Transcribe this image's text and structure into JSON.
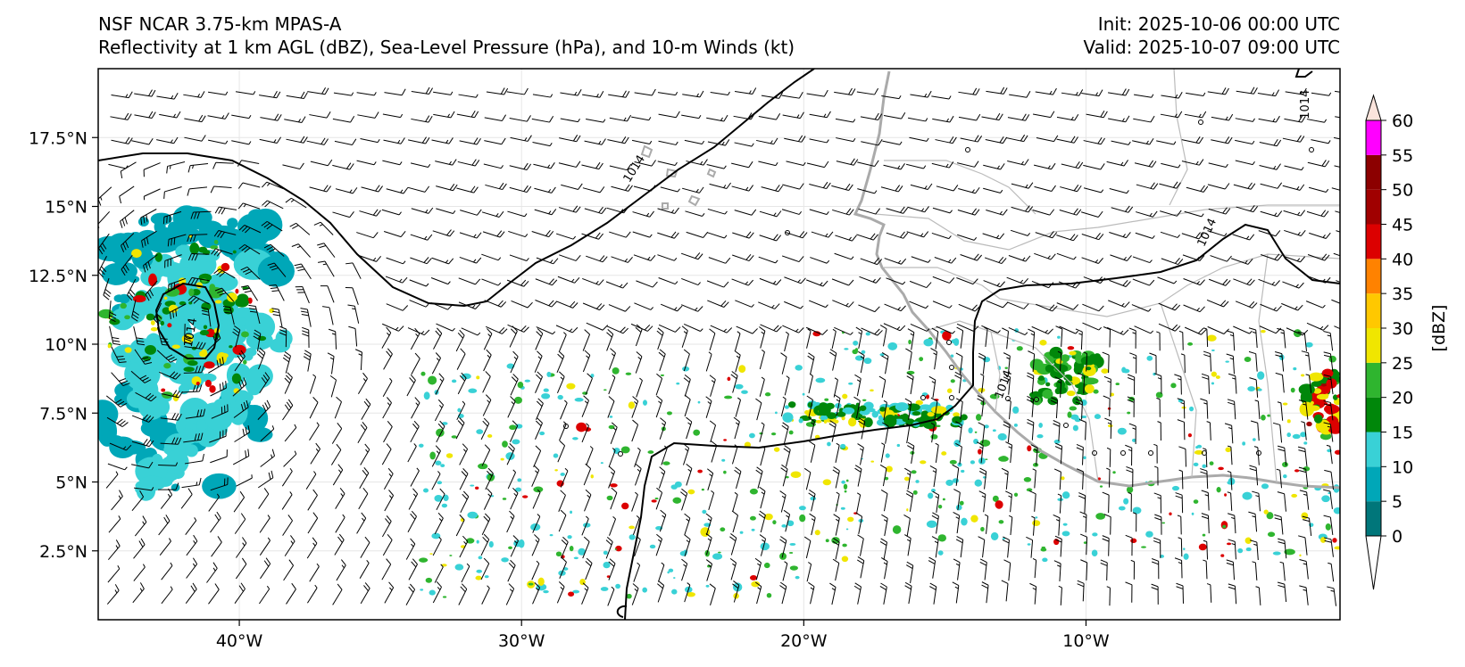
{
  "header": {
    "line1": "NSF NCAR 3.75-km MPAS-A",
    "line2": "Reflectivity at 1 km AGL (dBZ), Sea-Level Pressure (hPa), and 10-m Winds (kt)",
    "init": "Init: 2025-10-06 00:00 UTC",
    "valid": "Valid: 2025-10-07 09:00 UTC"
  },
  "map": {
    "lon_range": [
      -45,
      -1
    ],
    "lat_range": [
      0,
      20
    ],
    "lon_ticks": [
      {
        "value": -40,
        "label": "40°W"
      },
      {
        "value": -30,
        "label": "30°W"
      },
      {
        "value": -20,
        "label": "20°W"
      },
      {
        "value": -10,
        "label": "10°W"
      }
    ],
    "lat_ticks": [
      {
        "value": 2.5,
        "label": "2.5°N"
      },
      {
        "value": 5,
        "label": "5°N"
      },
      {
        "value": 7.5,
        "label": "7.5°N"
      },
      {
        "value": 10,
        "label": "10°N"
      },
      {
        "value": 12.5,
        "label": "12.5°N"
      },
      {
        "value": 15,
        "label": "15°N"
      },
      {
        "value": 17.5,
        "label": "17.5°N"
      }
    ],
    "contour_labels": [
      {
        "text": "1014",
        "lon": -25.9,
        "lat": 16.3,
        "rotate": -58
      },
      {
        "text": "1014",
        "lon": -2.1,
        "lat": 18.7,
        "rotate": -90
      },
      {
        "text": "1014",
        "lon": -5.6,
        "lat": 14.0,
        "rotate": -65
      },
      {
        "text": "1014",
        "lon": -12.8,
        "lat": 8.5,
        "rotate": -70
      },
      {
        "text": "1014",
        "lon": -41.6,
        "lat": 10.4,
        "rotate": -80
      }
    ]
  },
  "colorbar": {
    "label": "[dBZ]",
    "ticks": [
      "0",
      "5",
      "10",
      "15",
      "20",
      "25",
      "30",
      "35",
      "40",
      "45",
      "50",
      "55",
      "60"
    ],
    "colors": [
      "#00767a",
      "#00a7b8",
      "#39d1d6",
      "#00870a",
      "#2fb52f",
      "#f0e600",
      "#ffc800",
      "#ff8200",
      "#dc0000",
      "#a00000",
      "#8c0000",
      "#ff00ff",
      "#fbe4dc"
    ]
  }
}
